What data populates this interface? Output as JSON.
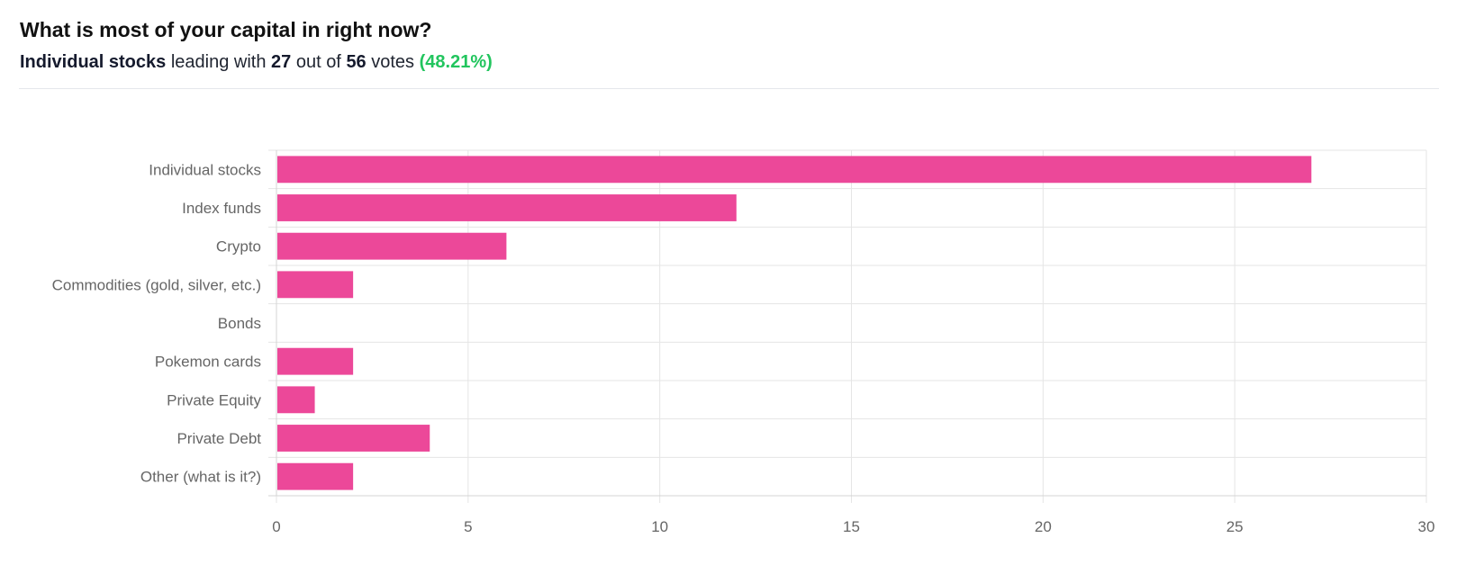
{
  "header": {
    "title": "What is most of your capital in right now?",
    "leader": "Individual stocks",
    "text_leading": "leading with",
    "leader_votes": "27",
    "text_out_of": "out of",
    "total_votes": "56",
    "text_votes": "votes",
    "percent": "(48.21%)"
  },
  "colors": {
    "bar": "#ec4899",
    "percent": "#22c55e"
  },
  "chart_data": {
    "type": "bar",
    "orientation": "horizontal",
    "title": "",
    "xlabel": "",
    "ylabel": "",
    "categories": [
      "Individual stocks",
      "Index funds",
      "Crypto",
      "Commodities (gold, silver, etc.)",
      "Bonds",
      "Pokemon cards",
      "Private Equity",
      "Private Debt",
      "Other (what is it?)"
    ],
    "values": [
      27,
      12,
      6,
      2,
      0,
      2,
      1,
      4,
      2
    ],
    "xlim": [
      0,
      30
    ],
    "xticks": [
      0,
      5,
      10,
      15,
      20,
      25,
      30
    ],
    "grid": true,
    "legend": "none"
  }
}
